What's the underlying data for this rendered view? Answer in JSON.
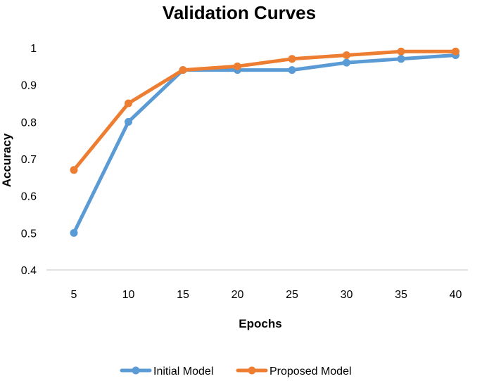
{
  "chart_data": {
    "type": "line",
    "title": "Validation Curves",
    "xlabel": "Epochs",
    "ylabel": "Accuracy",
    "x": [
      5,
      10,
      15,
      20,
      25,
      30,
      35,
      40
    ],
    "y_ticks": [
      0.4,
      0.5,
      0.6,
      0.7,
      0.8,
      0.9,
      1
    ],
    "y_tick_labels": [
      "0.4",
      "0.5",
      "0.6",
      "0.7",
      "0.8",
      "0.9",
      "1"
    ],
    "ylim": [
      0.4,
      1.0
    ],
    "grid": false,
    "legend_position": "bottom",
    "series": [
      {
        "name": "Initial Model",
        "color": "#5B9BD5",
        "values": [
          0.5,
          0.8,
          0.94,
          0.94,
          0.94,
          0.96,
          0.97,
          0.98
        ]
      },
      {
        "name": "Proposed Model",
        "color": "#ED7D31",
        "values": [
          0.67,
          0.85,
          0.94,
          0.95,
          0.97,
          0.98,
          0.99,
          0.99
        ]
      }
    ]
  }
}
